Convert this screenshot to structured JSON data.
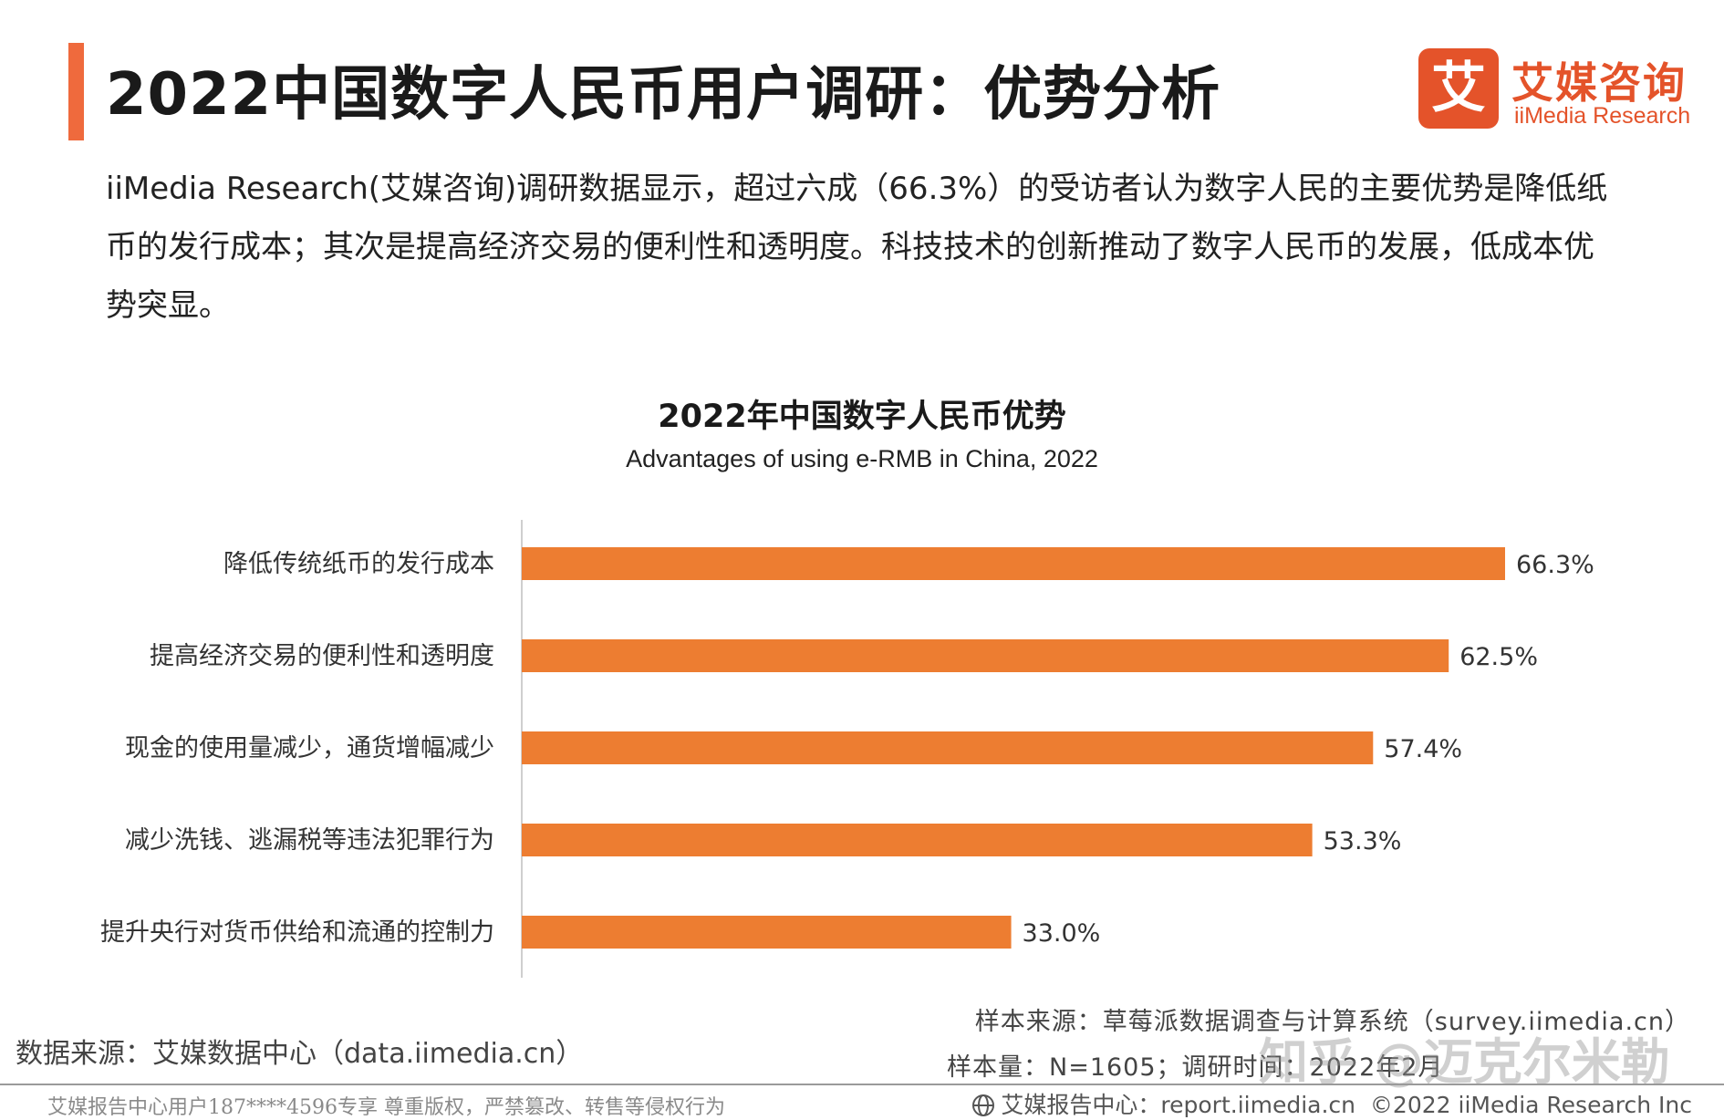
{
  "header": {
    "title": "2022中国数字人民币用户调研：优势分析",
    "logo_mark": "艾",
    "logo_cn": "艾媒咨询",
    "logo_en": "iiMedia Research"
  },
  "summary": "iiMedia Research(艾媒咨询)调研数据显示，超过六成（66.3%）的受访者认为数字人民的主要优势是降低纸币的发行成本；其次是提高经济交易的便利性和透明度。科技技术的创新推动了数字人民币的发展，低成本优势突显。",
  "chart_data": {
    "type": "bar",
    "orientation": "horizontal",
    "title": "2022年中国数字人民币优势",
    "subtitle": "Advantages of using e-RMB in China, 2022",
    "categories": [
      "降低传统纸币的发行成本",
      "提高经济交易的便利性和透明度",
      "现金的使用量减少，通货增幅减少",
      "减少洗钱、逃漏税等违法犯罪行为",
      "提升央行对货币供给和流通的控制力"
    ],
    "values": [
      66.3,
      62.5,
      57.4,
      53.3,
      33.0
    ],
    "value_labels": [
      "66.3%",
      "62.5%",
      "57.4%",
      "53.3%",
      "33.0%"
    ],
    "unit": "%",
    "xlim": [
      0,
      70
    ],
    "bar_color": "#ed7d31",
    "grid": false,
    "legend": "none"
  },
  "sources": {
    "data_source": "数据来源：艾媒数据中心（data.iimedia.cn）",
    "sample_source": "样本来源：草莓派数据调查与计算系统（survey.iimedia.cn）",
    "sample_size": "样本量：N=1605；调研时间：2022年2月"
  },
  "footer": {
    "left": "艾媒报告中心用户187****4596专享 尊重版权，严禁篡改、转售等侵权行为",
    "report_center": "艾媒报告中心：report.iimedia.cn",
    "copyright": "©2022 iiMedia Research Inc"
  },
  "watermark": "知乎 @迈克尔米勒",
  "colors": {
    "accent": "#ef6a3d",
    "brand": "#e4532a",
    "bar": "#ed7d31"
  }
}
